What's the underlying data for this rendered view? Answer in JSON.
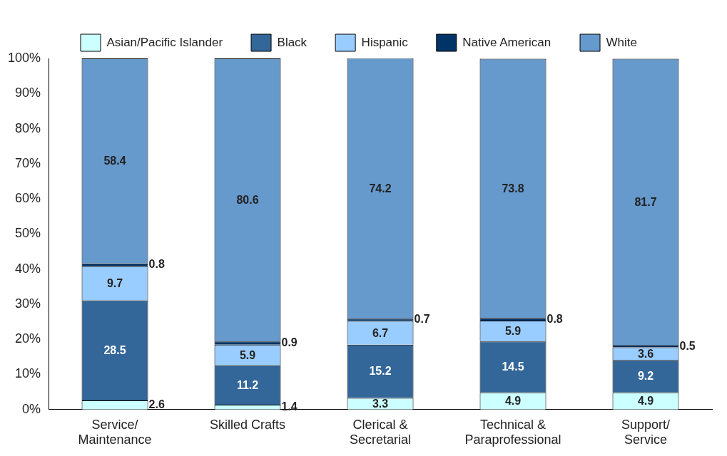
{
  "chart_data": {
    "type": "bar",
    "stacked": true,
    "categories": [
      "Service/\nMaintenance",
      "Skilled Crafts",
      "Clerical &\nSecretarial",
      "Technical &\nParaprofessional",
      "Support/\nService"
    ],
    "series": [
      {
        "name": "Asian/Pacific Islander",
        "color": "#ccffff",
        "values": [
          2.6,
          1.4,
          3.3,
          4.9,
          4.9
        ]
      },
      {
        "name": "Black",
        "color": "#336699",
        "values": [
          28.5,
          11.2,
          15.2,
          14.5,
          9.2
        ]
      },
      {
        "name": "Hispanic",
        "color": "#99ccff",
        "values": [
          9.7,
          5.9,
          6.7,
          5.9,
          3.6
        ]
      },
      {
        "name": "Native American",
        "color": "#003366",
        "values": [
          0.8,
          0.9,
          0.7,
          0.8,
          0.5
        ]
      },
      {
        "name": "White",
        "color": "#6699cc",
        "values": [
          58.4,
          80.6,
          74.2,
          73.8,
          81.7
        ]
      }
    ],
    "ylim": [
      0,
      100
    ],
    "yticks": [
      {
        "value": 0,
        "label": "0%"
      },
      {
        "value": 10,
        "label": "10%"
      },
      {
        "value": 20,
        "label": "20%"
      },
      {
        "value": 30,
        "label": "30%"
      },
      {
        "value": 40,
        "label": "40%"
      },
      {
        "value": 50,
        "label": "50%"
      },
      {
        "value": 60,
        "label": "60%"
      },
      {
        "value": 70,
        "label": "70%"
      },
      {
        "value": 80,
        "label": "80%"
      },
      {
        "value": 90,
        "label": "90%"
      },
      {
        "value": 100,
        "label": "100%"
      }
    ],
    "grid": false,
    "legend": "top",
    "data_labels": true
  }
}
